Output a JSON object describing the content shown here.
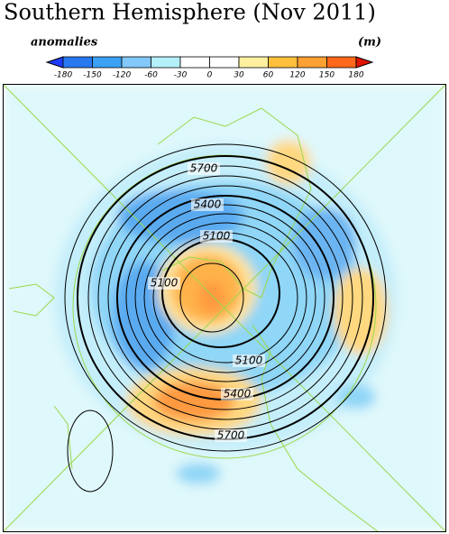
{
  "title": "Southern Hemisphere (Nov 2011)",
  "colorbar": {
    "left_label": "anomalies",
    "unit_label": "(m)",
    "labels": [
      "-180",
      "-150",
      "-120",
      "-60",
      "-30",
      "0",
      "30",
      "60",
      "120",
      "150",
      "180"
    ]
  },
  "map": {
    "contour_labels": [
      "5700",
      "5400",
      "5100",
      "5100",
      "5100",
      "5400",
      "5700"
    ]
  }
}
